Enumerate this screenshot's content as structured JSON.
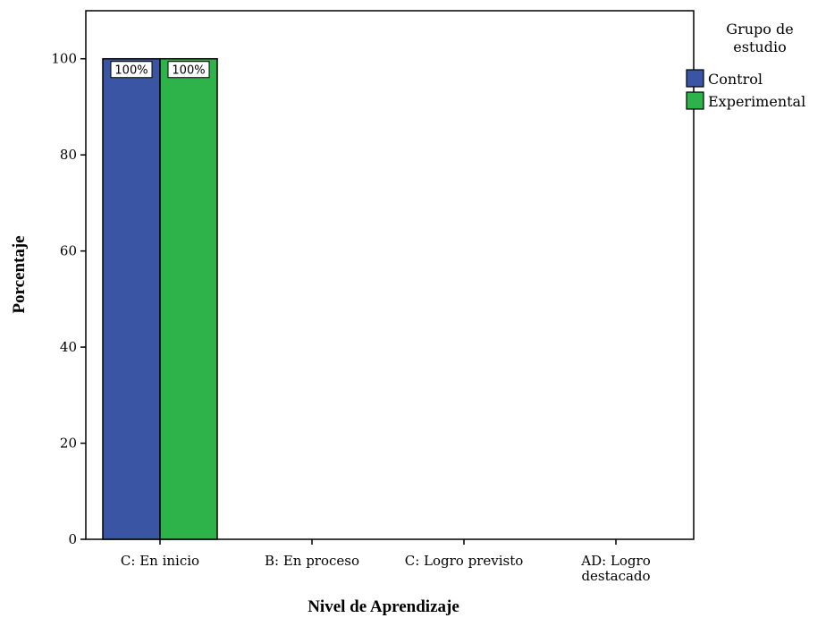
{
  "chart_data": {
    "type": "bar",
    "title": "",
    "xlabel": "Nivel de Aprendizaje",
    "ylabel": "Porcentaje",
    "ylim": [
      0,
      110
    ],
    "yticks": [
      0,
      20,
      40,
      60,
      80,
      100
    ],
    "categories": [
      [
        "C: En inicio"
      ],
      [
        "B: En proceso"
      ],
      [
        "C: Logro previsto"
      ],
      [
        "AD: Logro",
        "destacado"
      ]
    ],
    "series": [
      {
        "name": "Control",
        "color": "#3a55a4",
        "values": [
          100,
          0,
          0,
          0
        ],
        "labels": [
          "100%",
          "",
          "",
          ""
        ]
      },
      {
        "name": "Experimental",
        "color": "#2db34a",
        "values": [
          100,
          0,
          0,
          0
        ],
        "labels": [
          "100%",
          "",
          "",
          ""
        ]
      }
    ],
    "legend": {
      "title": [
        "Grupo de",
        "estudio"
      ],
      "position": "top-right"
    },
    "grid": false
  }
}
